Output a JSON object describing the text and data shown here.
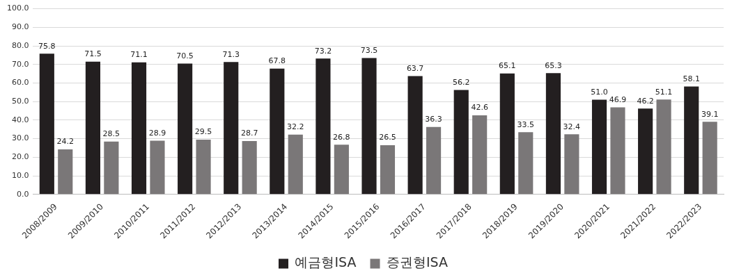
{
  "chart_data": {
    "type": "bar",
    "categories": [
      "2008/2009",
      "2009/2010",
      "2010/2011",
      "2011/2012",
      "2012/2013",
      "2013/2014",
      "2014/2015",
      "2015/2016",
      "2016/2017",
      "2017/2018",
      "2018/2019",
      "2019/2020",
      "2020/2021",
      "2021/2022",
      "2022/2023"
    ],
    "series": [
      {
        "name": "예금형ISA",
        "color": "#231f20",
        "values": [
          75.8,
          71.5,
          71.1,
          70.5,
          71.3,
          67.8,
          73.2,
          73.5,
          63.7,
          56.2,
          65.1,
          65.3,
          51.0,
          46.2,
          58.1
        ],
        "value_labels": [
          "75.8",
          "71.5",
          "71.1",
          "70.5",
          "71.3",
          "67.8",
          "73.2",
          "73.5",
          "63.7",
          "56.2",
          "65.1",
          "65.3",
          "51.0",
          "46.2",
          "58.1"
        ]
      },
      {
        "name": "증권형ISA",
        "color": "#7a7778",
        "values": [
          24.2,
          28.5,
          28.9,
          29.5,
          28.7,
          32.2,
          26.8,
          26.5,
          36.3,
          42.6,
          33.5,
          32.4,
          46.9,
          51.1,
          39.1
        ],
        "value_labels": [
          "24.2",
          "28.5",
          "28.9",
          "29.5",
          "28.7",
          "32.2",
          "26.8",
          "26.5",
          "36.3",
          "42.6",
          "33.5",
          "32.4",
          "46.9",
          "51.1",
          "39.1"
        ]
      }
    ],
    "ylim": [
      0,
      100
    ],
    "yticks": [
      {
        "value": 0,
        "label": "0.0"
      },
      {
        "value": 10,
        "label": "10.0"
      },
      {
        "value": 20,
        "label": "20.0"
      },
      {
        "value": 30,
        "label": "30.0"
      },
      {
        "value": 40,
        "label": "40.0"
      },
      {
        "value": 50,
        "label": "50.0"
      },
      {
        "value": 60,
        "label": "60.0"
      },
      {
        "value": 70,
        "label": "70.0"
      },
      {
        "value": 80,
        "label": "80.0"
      },
      {
        "value": 90,
        "label": "90.0"
      },
      {
        "value": 100,
        "label": "100.0"
      }
    ],
    "grid": "y",
    "legend": "bottom"
  }
}
